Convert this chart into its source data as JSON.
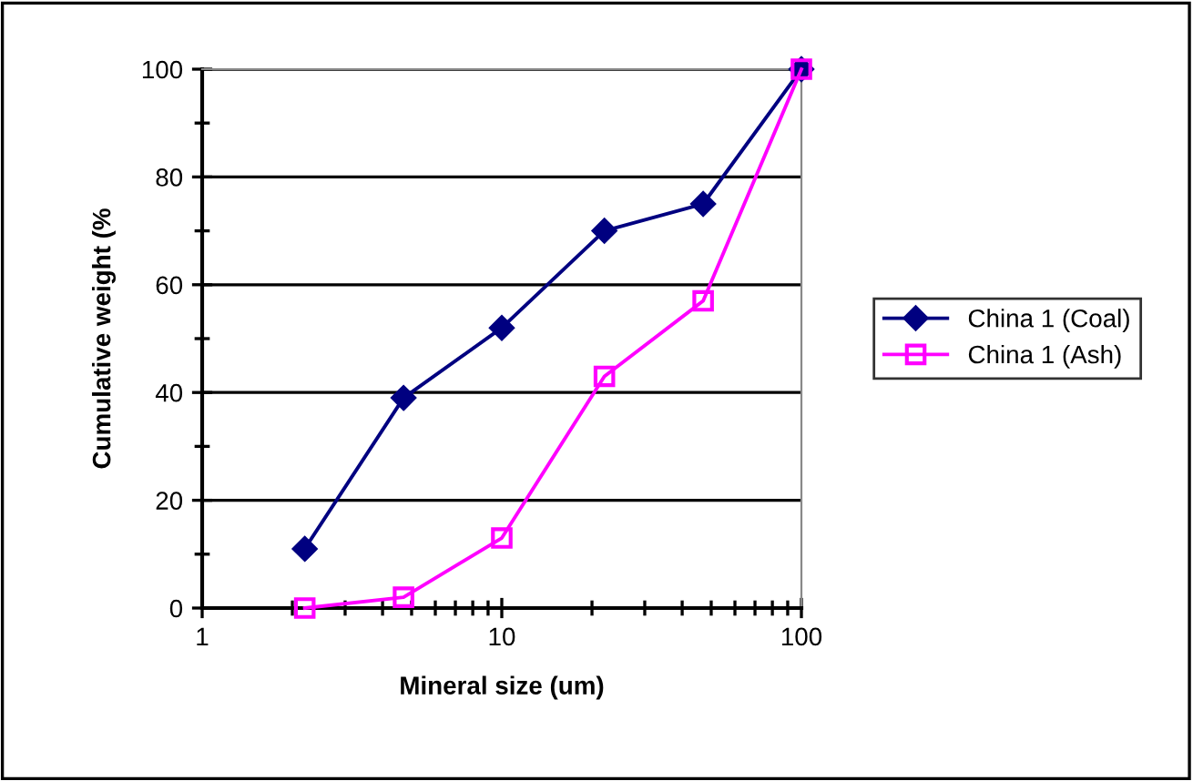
{
  "chart_data": {
    "type": "line",
    "xlabel": "Mineral size (um)",
    "ylabel": "Cumulative weight (%",
    "log": "x",
    "xlim": [
      1,
      100
    ],
    "xticks": [
      1,
      10,
      100
    ],
    "ylim": [
      0,
      100
    ],
    "yticks": [
      0,
      20,
      40,
      60,
      80,
      100
    ],
    "grid": "y",
    "legend": "right",
    "line_style": "solid",
    "series": [
      {
        "name": "China 1 (Coal)",
        "color": "#000080",
        "marker": "diamond",
        "x": [
          2.2,
          4.7,
          10,
          22,
          47,
          100
        ],
        "values": [
          11,
          39,
          52,
          70,
          75,
          100
        ]
      },
      {
        "name": "China 1 (Ash)",
        "color": "#ff00ff",
        "marker": "square",
        "x": [
          2.2,
          4.7,
          10,
          22,
          47,
          100
        ],
        "values": [
          0,
          2,
          13,
          43,
          57,
          100
        ]
      }
    ]
  }
}
